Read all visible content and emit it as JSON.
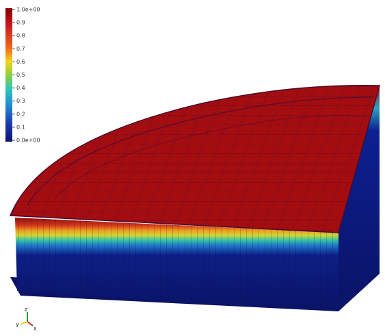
{
  "colorbar": {
    "ticks": [
      "1.0e+00",
      "0.9",
      "0.8",
      "0.7",
      "0.6",
      "0.5",
      "0.4",
      "0.3",
      "0.2",
      "0.1",
      "0.0e+00"
    ]
  },
  "orientation_axes": {
    "labels": [
      "z",
      "y",
      "x"
    ]
  }
}
